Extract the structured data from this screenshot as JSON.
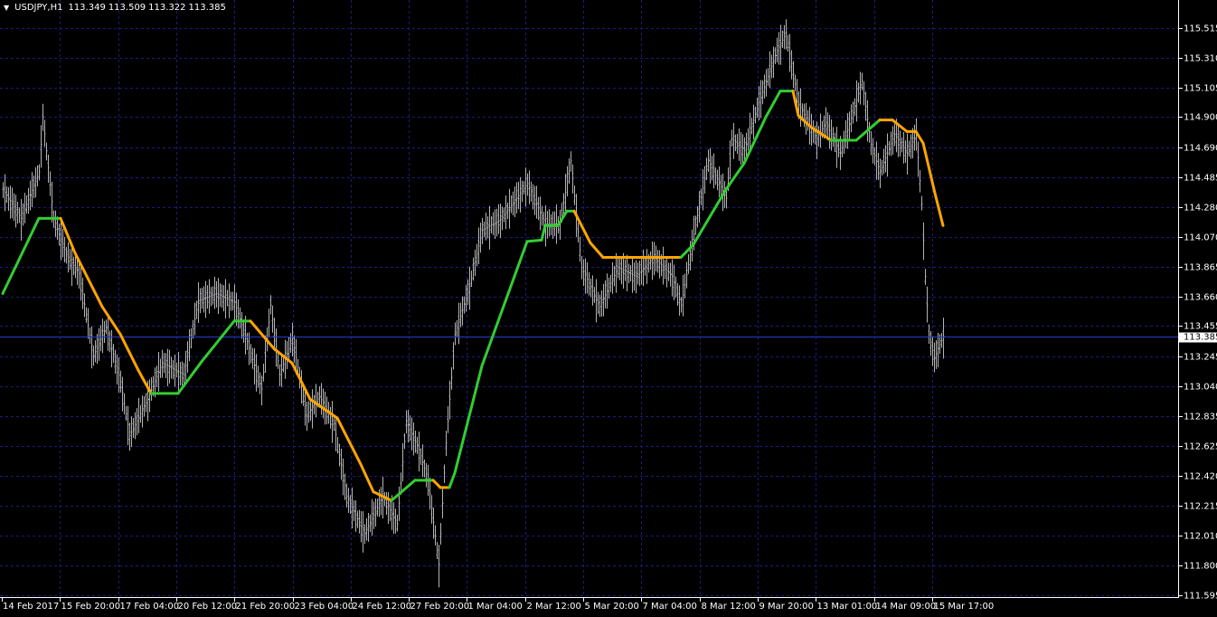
{
  "header": {
    "symbol": "USDJPY,H1",
    "open": "113.349",
    "high": "113.509",
    "low": "113.322",
    "close": "113.385"
  },
  "colors": {
    "background": "#000000",
    "bars": "#b4b4b4",
    "grid": "#1c1c78",
    "up_line": "#32cd32",
    "down_line": "#ffa500",
    "current_price_line": "#2a3acc"
  },
  "chart_data": {
    "type": "bar",
    "title": "USDJPY,H1",
    "ylim": [
      111.595,
      115.515
    ],
    "grid": true,
    "current_price": "113.385",
    "y_ticks": [
      "115.515",
      "115.310",
      "115.105",
      "114.900",
      "114.690",
      "114.485",
      "114.280",
      "114.070",
      "113.865",
      "113.660",
      "113.455",
      "113.245",
      "113.040",
      "112.835",
      "112.625",
      "112.420",
      "112.215",
      "112.010",
      "111.800",
      "111.595"
    ],
    "x_ticks": [
      "14 Feb 2017",
      "15 Feb 20:00",
      "17 Feb 04:00",
      "20 Feb 12:00",
      "21 Feb 20:00",
      "23 Feb 04:00",
      "24 Feb 12:00",
      "27 Feb 20:00",
      "1 Mar 04:00",
      "2 Mar 12:00",
      "5 Mar 20:00",
      "7 Mar 04:00",
      "8 Mar 12:00",
      "9 Mar 20:00",
      "13 Mar 01:00",
      "14 Mar 09:00",
      "15 Mar 17:00"
    ],
    "price_path": {
      "bar": [
        0,
        10,
        20,
        22,
        28,
        35,
        42,
        50,
        57,
        65,
        70,
        80,
        88,
        100,
        108,
        118,
        128,
        135,
        143,
        148,
        153,
        160,
        168,
        175,
        183,
        190,
        200,
        210,
        218,
        223,
        230,
        235,
        241,
        245,
        250,
        258,
        265,
        275,
        290,
        300,
        308,
        314,
        320,
        330,
        340,
        350,
        360,
        370,
        375,
        382,
        390,
        400,
        403,
        410,
        418,
        428,
        433,
        440,
        450,
        455,
        463,
        470,
        475,
        480,
        485,
        493,
        500,
        505,
        508,
        510,
        512,
        515,
        517,
        520
      ],
      "price": [
        114.4,
        114.2,
        114.52,
        114.9,
        114.2,
        113.95,
        113.82,
        113.25,
        113.45,
        113.07,
        112.7,
        112.95,
        113.2,
        113.12,
        113.63,
        113.68,
        113.62,
        113.35,
        113.02,
        113.6,
        113.12,
        113.37,
        112.84,
        112.97,
        112.78,
        112.28,
        112.02,
        112.28,
        112.09,
        112.8,
        112.6,
        112.39,
        111.81,
        112.65,
        113.4,
        113.73,
        114.12,
        114.19,
        114.44,
        114.16,
        114.16,
        114.6,
        113.86,
        113.59,
        113.86,
        113.8,
        113.93,
        113.8,
        113.6,
        114.09,
        114.6,
        114.34,
        114.75,
        114.67,
        115.0,
        115.36,
        115.48,
        114.99,
        114.75,
        114.86,
        114.65,
        114.93,
        115.15,
        114.71,
        114.52,
        114.78,
        114.65,
        114.78,
        114.3,
        113.8,
        113.4,
        113.23,
        113.3,
        113.385
      ]
    },
    "indicator": {
      "bar": [
        0,
        20,
        32,
        40,
        55,
        65,
        75,
        82,
        97,
        110,
        128,
        137,
        150,
        160,
        170,
        185,
        198,
        205,
        215,
        228,
        238,
        242,
        247,
        250,
        265,
        290,
        298,
        300,
        307,
        312,
        316,
        325,
        332,
        375,
        382,
        400,
        410,
        422,
        430,
        437,
        440,
        447,
        458,
        472,
        485,
        492,
        500,
        505,
        509,
        515,
        520
      ],
      "price": [
        113.68,
        114.2,
        114.2,
        113.96,
        113.59,
        113.4,
        113.15,
        112.99,
        112.99,
        113.21,
        113.49,
        113.49,
        113.3,
        113.2,
        112.95,
        112.82,
        112.5,
        112.31,
        112.25,
        112.39,
        112.39,
        112.34,
        112.34,
        112.44,
        113.18,
        114.04,
        114.05,
        114.15,
        114.15,
        114.25,
        114.25,
        114.03,
        113.93,
        113.93,
        114.02,
        114.4,
        114.58,
        114.9,
        115.08,
        115.08,
        114.91,
        114.83,
        114.74,
        114.74,
        114.88,
        114.88,
        114.8,
        114.8,
        114.72,
        114.4,
        114.15
      ],
      "trend": [
        "up",
        "up",
        "down",
        "down",
        "down",
        "down",
        "down",
        "up",
        "up",
        "up",
        "up",
        "down",
        "down",
        "down",
        "down",
        "down",
        "down",
        "down",
        "up",
        "up",
        "down",
        "down",
        "up",
        "up",
        "up",
        "up",
        "up",
        "up",
        "up",
        "up",
        "down",
        "down",
        "down",
        "up",
        "up",
        "up",
        "up",
        "up",
        "up",
        "down",
        "down",
        "down",
        "up",
        "up",
        "down",
        "down",
        "down",
        "down",
        "down",
        "down"
      ]
    }
  }
}
